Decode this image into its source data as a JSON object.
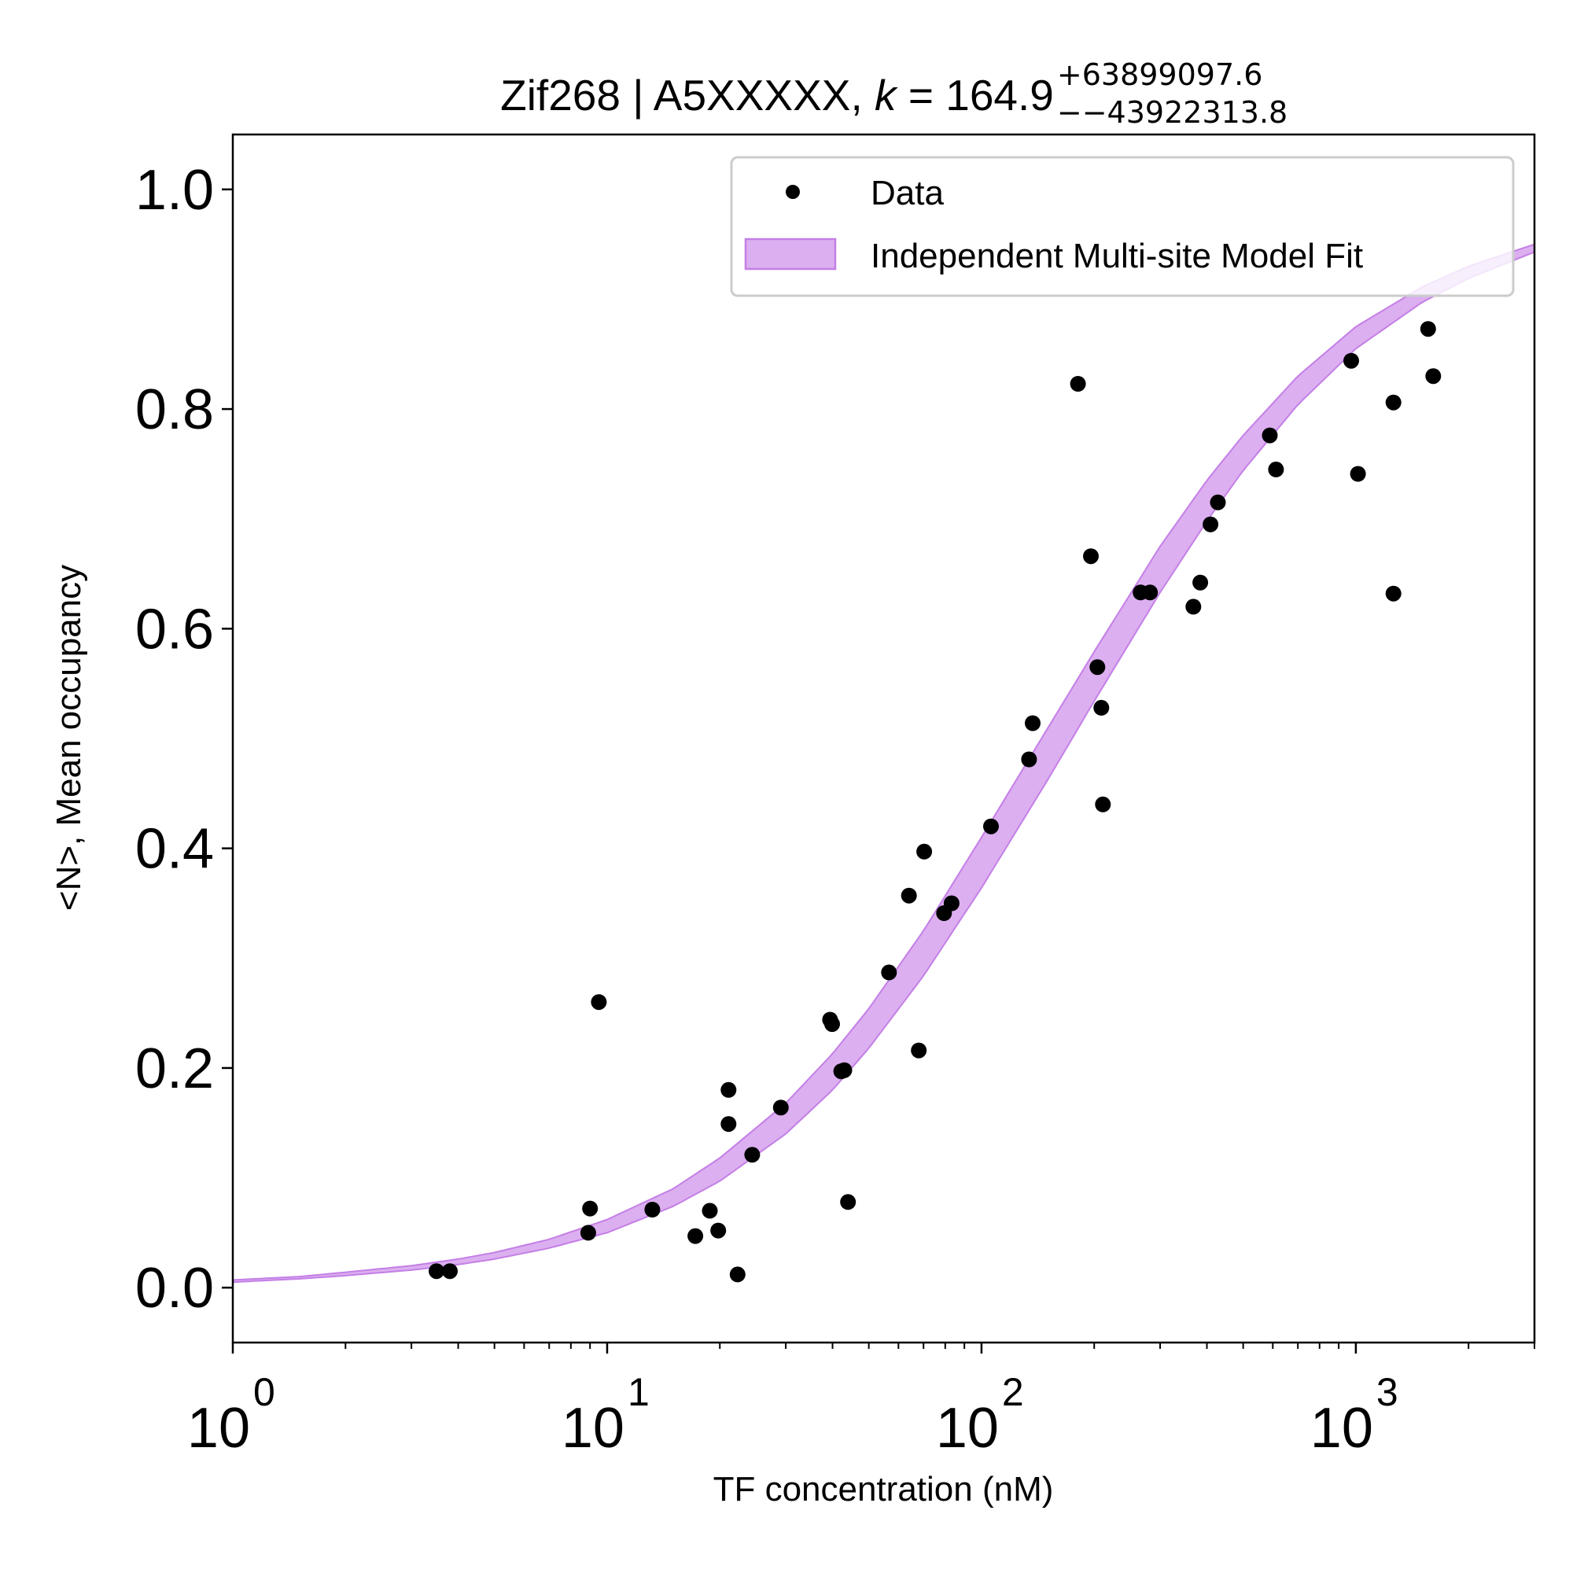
{
  "chart_data": {
    "type": "scatter",
    "title": {
      "prefix": "Zif268 | A5XXXXX, ",
      "k_symbol": "k",
      "equals": " = ",
      "k_value": "164.9",
      "upper": "+63899097.6",
      "lower": "−−43922313.8"
    },
    "xlabel": "TF concentration (nM)",
    "ylabel": "<N>, Mean occupancy",
    "x_scale": "log",
    "xlim": [
      1,
      3000
    ],
    "ylim": [
      -0.05,
      1.05
    ],
    "x_ticks": [
      {
        "base": "10",
        "exp": "0",
        "value": 1
      },
      {
        "base": "10",
        "exp": "1",
        "value": 10
      },
      {
        "base": "10",
        "exp": "2",
        "value": 100
      },
      {
        "base": "10",
        "exp": "3",
        "value": 1000
      }
    ],
    "y_ticks": [
      {
        "label": "0.0",
        "value": 0.0
      },
      {
        "label": "0.2",
        "value": 0.2
      },
      {
        "label": "0.4",
        "value": 0.4
      },
      {
        "label": "0.6",
        "value": 0.6
      },
      {
        "label": "0.8",
        "value": 0.8
      },
      {
        "label": "1.0",
        "value": 1.0
      }
    ],
    "grid": false,
    "legend_position": "top-right",
    "legend": [
      {
        "label": "Data",
        "kind": "marker"
      },
      {
        "label": "Independent Multi-site Model Fit",
        "kind": "band"
      }
    ],
    "colors": {
      "points": "#000000",
      "band_fill": "#dcaff0",
      "band_edge": "#c47fe6"
    },
    "fit_band": {
      "x": [
        1,
        1.5,
        2,
        3,
        4,
        5,
        7,
        10,
        15,
        20,
        30,
        40,
        50,
        70,
        100,
        150,
        200,
        300,
        400,
        500,
        700,
        1000,
        1500,
        2000,
        3000
      ],
      "lower": [
        0.005,
        0.008,
        0.011,
        0.016,
        0.021,
        0.026,
        0.036,
        0.05,
        0.074,
        0.097,
        0.14,
        0.18,
        0.218,
        0.284,
        0.364,
        0.462,
        0.534,
        0.633,
        0.698,
        0.744,
        0.804,
        0.855,
        0.897,
        0.919,
        0.943
      ],
      "upper": [
        0.007,
        0.01,
        0.014,
        0.02,
        0.026,
        0.032,
        0.044,
        0.062,
        0.09,
        0.118,
        0.168,
        0.213,
        0.254,
        0.325,
        0.41,
        0.509,
        0.579,
        0.675,
        0.735,
        0.776,
        0.83,
        0.875,
        0.911,
        0.93,
        0.95
      ]
    },
    "series": [
      {
        "name": "Data",
        "points": [
          [
            3.5,
            0.015
          ],
          [
            3.8,
            0.015
          ],
          [
            8.9,
            0.05
          ],
          [
            9.0,
            0.072
          ],
          [
            9.5,
            0.26
          ],
          [
            13.2,
            0.071
          ],
          [
            17.2,
            0.047
          ],
          [
            18.8,
            0.07
          ],
          [
            19.8,
            0.052
          ],
          [
            21.1,
            0.18
          ],
          [
            21.1,
            0.149
          ],
          [
            22.3,
            0.012
          ],
          [
            24.4,
            0.121
          ],
          [
            29.1,
            0.164
          ],
          [
            39.4,
            0.244
          ],
          [
            39.9,
            0.24
          ],
          [
            42.2,
            0.197
          ],
          [
            43.0,
            0.198
          ],
          [
            44.0,
            0.078
          ],
          [
            56.6,
            0.287
          ],
          [
            64.0,
            0.357
          ],
          [
            68.0,
            0.216
          ],
          [
            70.3,
            0.397
          ],
          [
            79.4,
            0.341
          ],
          [
            83.2,
            0.35
          ],
          [
            106.0,
            0.42
          ],
          [
            134.0,
            0.481
          ],
          [
            137.0,
            0.514
          ],
          [
            181.0,
            0.823
          ],
          [
            196.0,
            0.666
          ],
          [
            204.0,
            0.565
          ],
          [
            209.0,
            0.528
          ],
          [
            211.0,
            0.44
          ],
          [
            266.0,
            0.633
          ],
          [
            282.0,
            0.633
          ],
          [
            368.0,
            0.62
          ],
          [
            384.0,
            0.642
          ],
          [
            409.0,
            0.695
          ],
          [
            428.0,
            0.715
          ],
          [
            589.0,
            0.776
          ],
          [
            612.0,
            0.745
          ],
          [
            972.0,
            0.844
          ],
          [
            1013.0,
            0.741
          ],
          [
            1260.0,
            0.806
          ],
          [
            1260.0,
            0.632
          ],
          [
            1560.0,
            0.873
          ],
          [
            1610.0,
            0.83
          ]
        ]
      }
    ]
  }
}
